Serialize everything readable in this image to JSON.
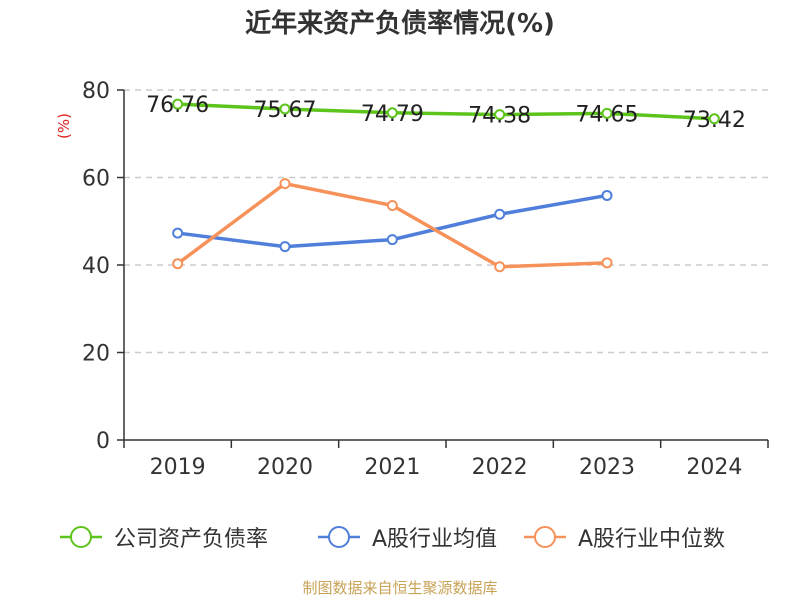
{
  "chart_data": {
    "type": "line",
    "title": "近年来资产负债率情况(%)",
    "ylabel": "(%)",
    "xlabel": "",
    "categories": [
      "2019",
      "2020",
      "2021",
      "2022",
      "2023",
      "2024"
    ],
    "ylim": [
      0,
      80
    ],
    "yticks": [
      0,
      20,
      40,
      60,
      80
    ],
    "grid": true,
    "legend_position": "bottom",
    "series": [
      {
        "name": "公司资产负债率",
        "color": "#5dc41c",
        "values": [
          76.76,
          75.67,
          74.79,
          74.38,
          74.65,
          73.42
        ],
        "labels": [
          "76.76",
          "75.67",
          "74.79",
          "74.38",
          "74.65",
          "73.42"
        ]
      },
      {
        "name": "A股行业均值",
        "color": "#4f7fda",
        "values": [
          47.3,
          44.2,
          45.8,
          51.6,
          55.9,
          null
        ]
      },
      {
        "name": "A股行业中位数",
        "color": "#f6915a",
        "values": [
          40.3,
          58.6,
          53.6,
          39.6,
          40.5,
          null
        ]
      }
    ]
  },
  "source_text": "制图数据来自恒生聚源数据库",
  "colors": {
    "axis": "#333333",
    "grid": "#cccccc",
    "ylabel": "#e02020",
    "source": "#c8a256"
  }
}
